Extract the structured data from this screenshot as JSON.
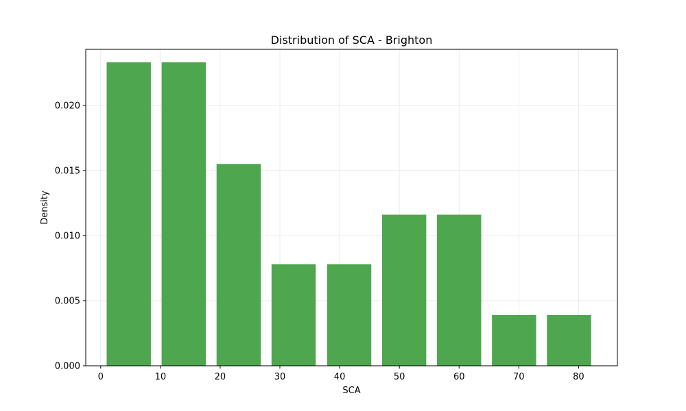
{
  "chart_data": {
    "type": "bar",
    "title": "Distribution of SCA - Brighton",
    "xlabel": "SCA",
    "ylabel": "Density",
    "bar_color": "#4ea64e",
    "grid": true,
    "xlim": [
      -2.5,
      86.5
    ],
    "ylim": [
      0,
      0.0243
    ],
    "xticks": [
      0,
      10,
      20,
      30,
      40,
      50,
      60,
      70,
      80
    ],
    "xtick_labels": [
      "0",
      "10",
      "20",
      "30",
      "40",
      "50",
      "60",
      "70",
      "80"
    ],
    "yticks": [
      0,
      0.005,
      0.01,
      0.015,
      0.02
    ],
    "ytick_labels": [
      "0.000",
      "0.005",
      "0.010",
      "0.015",
      "0.020"
    ],
    "bins": [
      {
        "x0": 1.0,
        "x1": 8.4,
        "value": 0.0233
      },
      {
        "x0": 10.2,
        "x1": 17.6,
        "value": 0.0233
      },
      {
        "x0": 19.4,
        "x1": 26.8,
        "value": 0.0155
      },
      {
        "x0": 28.6,
        "x1": 36.0,
        "value": 0.0078
      },
      {
        "x0": 37.9,
        "x1": 45.3,
        "value": 0.0078
      },
      {
        "x0": 47.1,
        "x1": 54.5,
        "value": 0.0116
      },
      {
        "x0": 56.3,
        "x1": 63.7,
        "value": 0.0116
      },
      {
        "x0": 65.5,
        "x1": 72.9,
        "value": 0.0039
      },
      {
        "x0": 74.7,
        "x1": 82.1,
        "value": 0.0039
      }
    ]
  }
}
